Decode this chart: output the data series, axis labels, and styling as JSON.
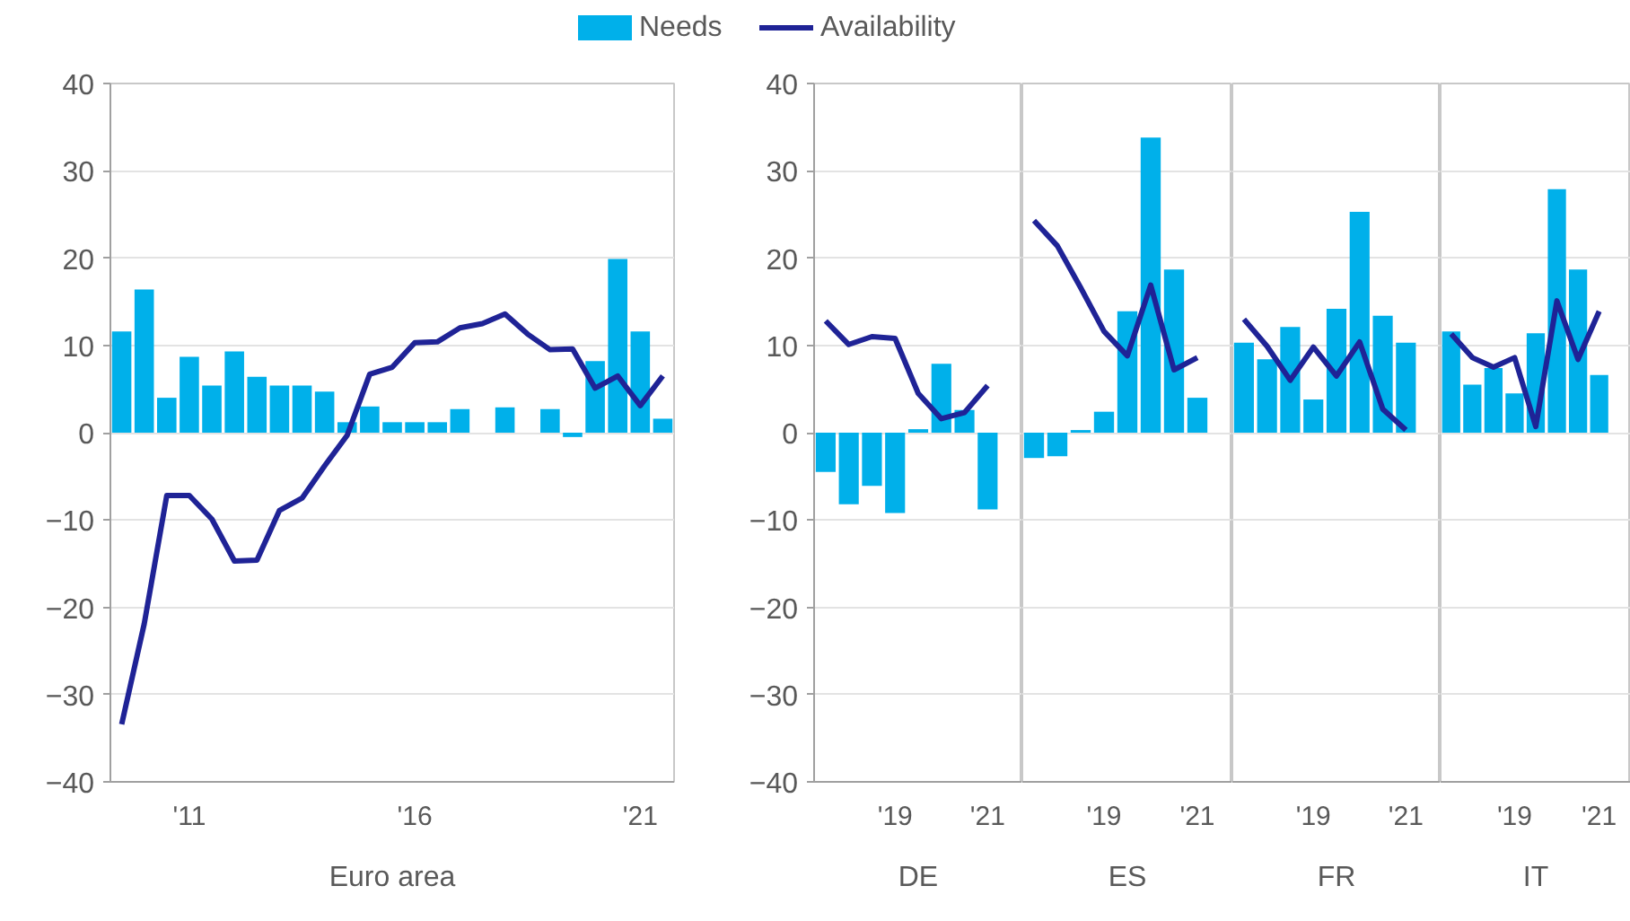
{
  "chart_data": [
    {
      "type": "bar",
      "xlabel": "Euro area",
      "legend": "top",
      "grid": "y",
      "ylim": [
        -40,
        40
      ],
      "yticks": [
        -40,
        -30,
        -20,
        -10,
        0,
        10,
        20,
        30,
        40
      ],
      "categories": [
        null,
        null,
        null,
        "'11",
        null,
        null,
        null,
        null,
        null,
        null,
        null,
        null,
        null,
        "'16",
        null,
        null,
        null,
        null,
        null,
        null,
        null,
        null,
        null,
        "'21",
        null
      ],
      "series": [
        {
          "name": "Needs",
          "color": "#00b0ea",
          "values": [
            11.6,
            16.4,
            4.0,
            8.7,
            5.4,
            9.3,
            6.4,
            5.4,
            5.4,
            4.7,
            1.2,
            3.0,
            1.2,
            1.2,
            1.2,
            2.7,
            0,
            2.9,
            0,
            2.7,
            -0.5,
            8.2,
            19.9,
            11.6,
            1.6
          ]
        },
        {
          "name": "Availability",
          "type": "line",
          "color": "#1f2396",
          "values": [
            -33.4,
            -21.9,
            -7.2,
            -7.2,
            -9.9,
            -14.7,
            -14.6,
            -8.9,
            -7.5,
            -3.8,
            -0.3,
            6.7,
            7.5,
            10.3,
            10.4,
            12.0,
            12.5,
            13.6,
            11.3,
            9.5,
            9.6,
            5.1,
            6.5,
            3.1,
            6.5
          ]
        }
      ]
    },
    {
      "type": "bar",
      "xlabel": "DE",
      "grid": "y",
      "ylim": [
        -40,
        40
      ],
      "yticks": [
        -40,
        -30,
        -20,
        -10,
        0,
        10,
        20,
        30,
        40
      ],
      "categories": [
        null,
        null,
        null,
        "'19",
        null,
        null,
        null,
        "'21"
      ],
      "series": [
        {
          "color": "#00b0ea",
          "values": [
            -4.5,
            -8.2,
            -6.1,
            -9.2,
            0.4,
            7.9,
            2.6,
            -8.8
          ]
        },
        {
          "type": "line",
          "color": "#1f2396",
          "values": [
            12.8,
            10.1,
            11.0,
            10.8,
            4.5,
            1.6,
            2.3,
            5.4
          ]
        }
      ]
    },
    {
      "type": "bar",
      "xlabel": "ES",
      "grid": "y",
      "tick_labels": "x",
      "ylim": [
        -40,
        40
      ],
      "yticks": [
        -40,
        -30,
        -20,
        -10,
        0,
        10,
        20,
        30,
        40
      ],
      "categories": [
        null,
        null,
        null,
        "'19",
        null,
        null,
        null,
        "'21"
      ],
      "series": [
        {
          "color": "#00b0ea",
          "values": [
            -2.9,
            -2.7,
            0.3,
            2.4,
            13.9,
            33.8,
            18.7,
            4.0
          ]
        },
        {
          "type": "line",
          "color": "#1f2396",
          "values": [
            24.3,
            21.4,
            16.6,
            11.6,
            8.8,
            16.9,
            7.2,
            8.6
          ]
        }
      ]
    },
    {
      "type": "bar",
      "xlabel": "FR",
      "grid": "y",
      "tick_labels": "x",
      "ylim": [
        -40,
        40
      ],
      "yticks": [
        -40,
        -30,
        -20,
        -10,
        0,
        10,
        20,
        30,
        40
      ],
      "categories": [
        null,
        null,
        null,
        "'19",
        null,
        null,
        null,
        "'21"
      ],
      "series": [
        {
          "color": "#00b0ea",
          "values": [
            10.3,
            8.4,
            12.1,
            3.8,
            14.2,
            25.3,
            13.4,
            10.3
          ]
        },
        {
          "type": "line",
          "color": "#1f2396",
          "values": [
            13.0,
            9.9,
            6.0,
            9.8,
            6.5,
            10.4,
            2.7,
            0.3
          ]
        }
      ]
    },
    {
      "type": "bar",
      "xlabel": "IT",
      "grid": "y",
      "tick_labels": "x",
      "ylim": [
        -40,
        40
      ],
      "yticks": [
        -40,
        -30,
        -20,
        -10,
        0,
        10,
        20,
        30,
        40
      ],
      "categories": [
        null,
        null,
        null,
        "'19",
        null,
        null,
        null,
        "'21"
      ],
      "series": [
        {
          "color": "#00b0ea",
          "values": [
            11.6,
            5.5,
            7.4,
            4.5,
            11.4,
            27.9,
            18.7,
            6.6
          ]
        },
        {
          "type": "line",
          "color": "#1f2396",
          "values": [
            11.3,
            8.6,
            7.5,
            8.6,
            0.7,
            15.1,
            8.4,
            13.9
          ]
        }
      ]
    }
  ]
}
